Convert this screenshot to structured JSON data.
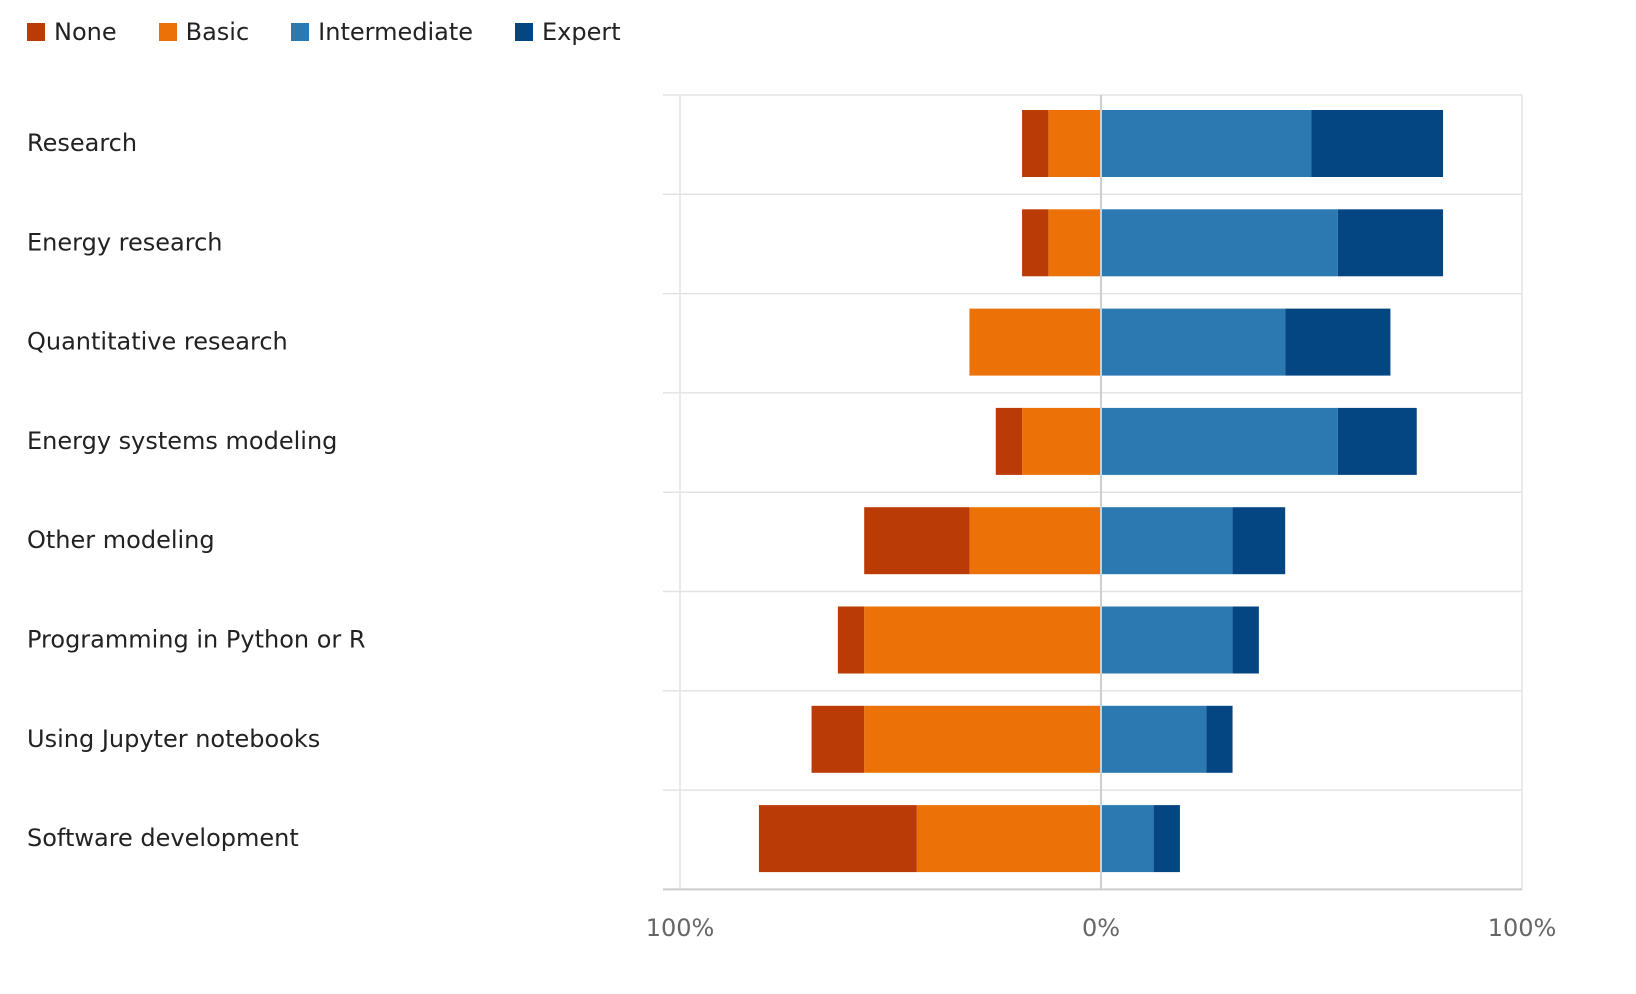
{
  "chart_data": {
    "type": "bar",
    "orientation": "horizontal",
    "stacking": "diverging",
    "legend_position": "top-left",
    "grid": true,
    "categories": [
      "Research",
      "Energy research",
      "Quantitative research",
      "Energy systems modeling",
      "Other modeling",
      "Programming in Python or R",
      "Using Jupyter notebooks",
      "Software development"
    ],
    "series": [
      {
        "name": "None",
        "color": "#bb3b07",
        "side": "negative",
        "values": [
          6.25,
          6.25,
          0,
          6.25,
          25,
          6.25,
          12.5,
          37.5
        ]
      },
      {
        "name": "Basic",
        "color": "#ec7207",
        "side": "negative",
        "values": [
          12.5,
          12.5,
          31.25,
          18.75,
          31.25,
          56.25,
          56.25,
          43.75
        ]
      },
      {
        "name": "Intermediate",
        "color": "#2c79b1",
        "side": "positive",
        "values": [
          50,
          56.25,
          43.75,
          56.25,
          31.25,
          31.25,
          25,
          12.5
        ]
      },
      {
        "name": "Expert",
        "color": "#044682",
        "side": "positive",
        "values": [
          31.25,
          25,
          25,
          18.75,
          12.5,
          6.25,
          6.25,
          6.25
        ]
      }
    ],
    "xlim": [
      -100,
      100
    ],
    "xticks": [
      {
        "value": -100,
        "label": "100%"
      },
      {
        "value": 0,
        "label": "0%"
      },
      {
        "value": 100,
        "label": "100%"
      }
    ],
    "title": "",
    "xlabel": "",
    "ylabel": ""
  }
}
